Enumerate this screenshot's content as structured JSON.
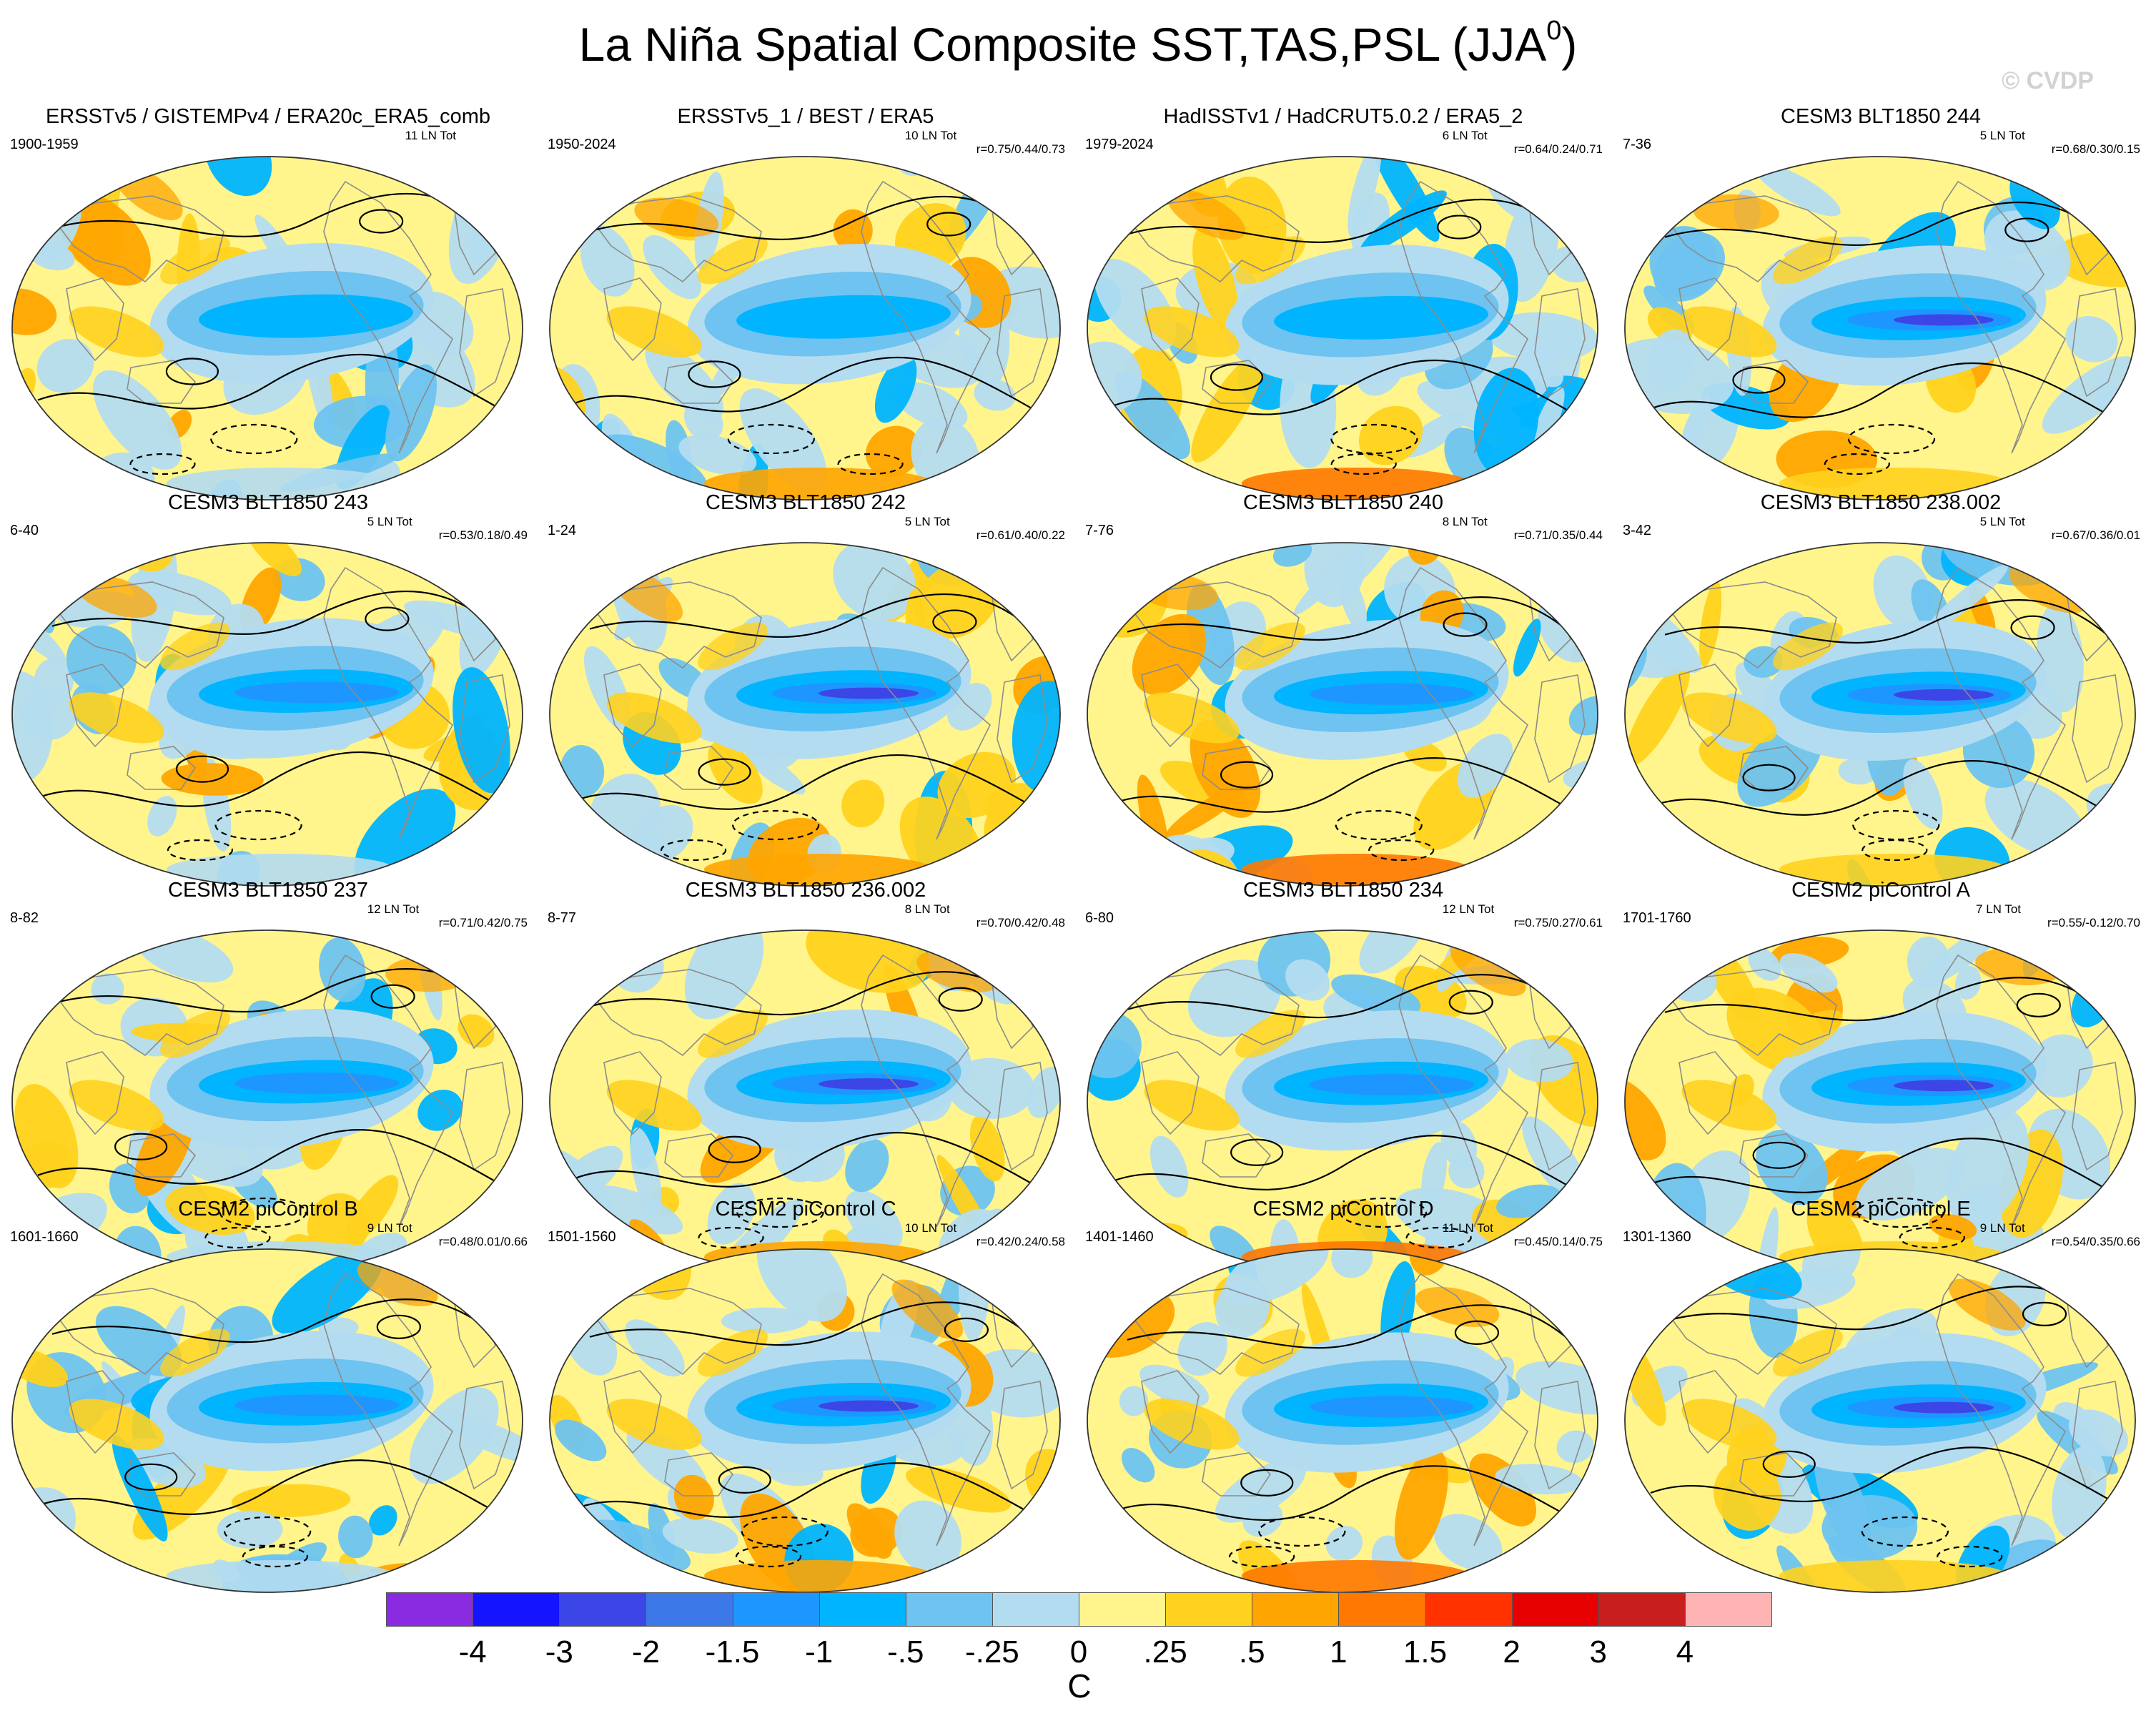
{
  "title": "La Niña Spatial Composite SST,TAS,PSL (JJA",
  "title_sup": "0",
  "title_close": ")",
  "watermark": "© CVDP",
  "panels": [
    {
      "title": "ERSSTv5 / GISTEMPv4 / ERA20c_ERA5_comb",
      "years": "1900-1959",
      "ln": "11 LN Tot",
      "r": ""
    },
    {
      "title": "ERSSTv5_1 / BEST / ERA5",
      "years": "1950-2024",
      "ln": "10 LN Tot",
      "r": "r=0.75/0.44/0.73"
    },
    {
      "title": "HadISSTv1 / HadCRUT5.0.2 / ERA5_2",
      "years": "1979-2024",
      "ln": "6 LN Tot",
      "r": "r=0.64/0.24/0.71"
    },
    {
      "title": "CESM3 BLT1850 244",
      "years": "7-36",
      "ln": "5 LN Tot",
      "r": "r=0.68/0.30/0.15"
    },
    {
      "title": "CESM3 BLT1850 243",
      "years": "6-40",
      "ln": "5 LN Tot",
      "r": "r=0.53/0.18/0.49"
    },
    {
      "title": "CESM3 BLT1850 242",
      "years": "1-24",
      "ln": "5 LN Tot",
      "r": "r=0.61/0.40/0.22"
    },
    {
      "title": "CESM3 BLT1850 240",
      "years": "7-76",
      "ln": "8 LN Tot",
      "r": "r=0.71/0.35/0.44"
    },
    {
      "title": "CESM3 BLT1850 238.002",
      "years": "3-42",
      "ln": "5 LN Tot",
      "r": "r=0.67/0.36/0.01"
    },
    {
      "title": "CESM3 BLT1850 237",
      "years": "8-82",
      "ln": "12 LN Tot",
      "r": "r=0.71/0.42/0.75"
    },
    {
      "title": "CESM3 BLT1850 236.002",
      "years": "8-77",
      "ln": "8 LN Tot",
      "r": "r=0.70/0.42/0.48"
    },
    {
      "title": "CESM3 BLT1850 234",
      "years": "6-80",
      "ln": "12 LN Tot",
      "r": "r=0.75/0.27/0.61"
    },
    {
      "title": "CESM2 piControl A",
      "years": "1701-1760",
      "ln": "7 LN Tot",
      "r": "r=0.55/-0.12/0.70"
    },
    {
      "title": "CESM2 piControl B",
      "years": "1601-1660",
      "ln": "9 LN Tot",
      "r": "r=0.48/0.01/0.66"
    },
    {
      "title": "CESM2 piControl C",
      "years": "1501-1560",
      "ln": "10 LN Tot",
      "r": "r=0.42/0.24/0.58"
    },
    {
      "title": "CESM2 piControl D",
      "years": "1401-1460",
      "ln": "11 LN Tot",
      "r": "r=0.45/0.14/0.75"
    },
    {
      "title": "CESM2 piControl E",
      "years": "1301-1360",
      "ln": "9 LN Tot",
      "r": "r=0.54/0.35/0.66"
    }
  ],
  "colorbar": {
    "unit": "C",
    "labels": [
      "-4",
      "-3",
      "-2",
      "-1.5",
      "-1",
      "-.5",
      "-.25",
      "0",
      ".25",
      ".5",
      "1",
      "1.5",
      "2",
      "3",
      "4"
    ],
    "colors": [
      "#8a2be2",
      "#1414ff",
      "#3c46e6",
      "#3c78e8",
      "#1e96ff",
      "#00b4ff",
      "#6ec3f0",
      "#b4dcf0",
      "#fff58c",
      "#ffd21e",
      "#ffa500",
      "#ff7800",
      "#ff3200",
      "#e60000",
      "#c81e1e",
      "#ffb4b4"
    ]
  },
  "colors": {
    "ocean_base": "#b4dcf0",
    "cold_tongue": "#1e96ff",
    "cold_core": "#3c46e6",
    "warm": "#fff58c",
    "warm_strong": "#ffa500",
    "coast": "#8c8c8c",
    "contour": "#000000"
  }
}
